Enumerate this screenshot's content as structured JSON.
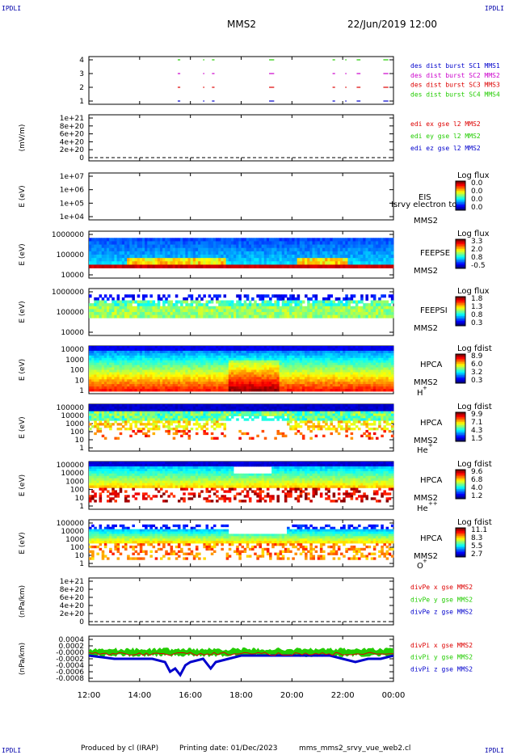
{
  "header": {
    "corner_label": "IPDLI",
    "mission": "MMS2",
    "date_time": "22/Jun/2019 12:00"
  },
  "footer": {
    "produced_by": "Produced by cl (IRAP)",
    "printing_date": "Printing date: 01/Dec/2023",
    "file_name": "mms_mms2_srvy_vue_web2.cl"
  },
  "colors": {
    "red": "#dd0000",
    "green": "#22cc00",
    "blue": "#0000cc",
    "magenta": "#cc00cc"
  },
  "chart_data": [
    {
      "type": "scatter",
      "name": "burst-availability",
      "yticks": [
        "4",
        "3",
        "2",
        "1"
      ],
      "legend": [
        {
          "label": "des dist burst SC1 MMS1",
          "color": "#0000cc"
        },
        {
          "label": "des dist burst SC2 MMS2",
          "color": "#cc00cc"
        },
        {
          "label": "des dist burst SC3 MMS3",
          "color": "#dd0000"
        },
        {
          "label": "des dist burst SC4 MMS4",
          "color": "#22cc00"
        }
      ],
      "segments_hours": [
        [
          15.5,
          15.6
        ],
        [
          16.5,
          16.55
        ],
        [
          16.85,
          16.95
        ],
        [
          19.1,
          19.3
        ],
        [
          21.6,
          21.7
        ],
        [
          22.1,
          22.15
        ],
        [
          22.55,
          22.7
        ],
        [
          23.6,
          23.8
        ]
      ]
    },
    {
      "type": "line",
      "name": "edi-e-field",
      "ylabel": "(mV/m)",
      "yticks": [
        "1e+21",
        "8e+20",
        "6e+20",
        "4e+20",
        "2e+20",
        "0"
      ],
      "legend": [
        {
          "label": "edi ex gse l2 MMS2",
          "color": "#dd0000"
        },
        {
          "label": "edi ey gse l2 MMS2",
          "color": "#22cc00"
        },
        {
          "label": "edi ez gse l2 MMS2",
          "color": "#0000cc"
        }
      ]
    },
    {
      "type": "heatmap",
      "name": "eis",
      "ylabel": "E (eV)",
      "yticks": [
        "1e+07",
        "1e+06",
        "1e+05",
        "1e+04"
      ],
      "instrument": [
        "EIS",
        "MMS2"
      ],
      "overlay_text": "Isrvy electron to",
      "colorbar_title": "Log flux",
      "colorbar_values": [
        "0.0",
        "0.0",
        "0.0",
        "0.0"
      ]
    },
    {
      "type": "heatmap",
      "name": "feeps-electron",
      "ylabel": "E (eV)",
      "yticks": [
        "1000000",
        "100000",
        "10000"
      ],
      "instrument": [
        "FEEPSE",
        "MMS2"
      ],
      "colorbar_title": "Log flux",
      "colorbar_values": [
        "3.3",
        "2.0",
        "0.8",
        "-0.5"
      ]
    },
    {
      "type": "heatmap",
      "name": "feeps-ion",
      "ylabel": "E (eV)",
      "yticks": [
        "1000000",
        "100000",
        "10000"
      ],
      "instrument": [
        "FEEPSI",
        "MMS2"
      ],
      "colorbar_title": "Log flux",
      "colorbar_values": [
        "1.8",
        "1.3",
        "0.8",
        "0.3"
      ]
    },
    {
      "type": "heatmap",
      "name": "hpca-h",
      "ylabel": "E (eV)",
      "yticks": [
        "10000",
        "1000",
        "100",
        "10",
        "1"
      ],
      "instrument": [
        "HPCA",
        "MMS2"
      ],
      "species": "H",
      "species_sup": "+",
      "colorbar_title": "Log fdist",
      "colorbar_values": [
        "8.9",
        "6.0",
        "3.2",
        "0.3"
      ]
    },
    {
      "type": "heatmap",
      "name": "hpca-he",
      "ylabel": "E (eV)",
      "yticks": [
        "100000",
        "10000",
        "1000",
        "100",
        "10",
        "1"
      ],
      "instrument": [
        "HPCA",
        "MMS2"
      ],
      "species": "He",
      "species_sup": "+",
      "colorbar_title": "Log fdist",
      "colorbar_values": [
        "9.9",
        "7.1",
        "4.3",
        "1.5"
      ]
    },
    {
      "type": "heatmap",
      "name": "hpca-he2",
      "ylabel": "E (eV)",
      "yticks": [
        "100000",
        "10000",
        "1000",
        "100",
        "10",
        "1"
      ],
      "instrument": [
        "HPCA",
        "MMS2"
      ],
      "species": "He",
      "species_sup": "++",
      "colorbar_title": "Log fdist",
      "colorbar_values": [
        "9.6",
        "6.8",
        "4.0",
        "1.2"
      ]
    },
    {
      "type": "heatmap",
      "name": "hpca-o",
      "ylabel": "E (eV)",
      "yticks": [
        "100000",
        "10000",
        "1000",
        "100",
        "10",
        "1"
      ],
      "instrument": [
        "HPCA",
        "MMS2"
      ],
      "species": "O",
      "species_sup": "+",
      "colorbar_title": "Log fdist",
      "colorbar_values": [
        "11.1",
        "8.3",
        "5.5",
        "2.7"
      ]
    },
    {
      "type": "line",
      "name": "divpe",
      "ylabel": "(nPa/km)",
      "yticks": [
        "1e+21",
        "8e+20",
        "6e+20",
        "4e+20",
        "2e+20",
        "0"
      ],
      "legend": [
        {
          "label": "divPe x gse MMS2",
          "color": "#dd0000"
        },
        {
          "label": "divPe y gse MMS2",
          "color": "#22cc00"
        },
        {
          "label": "divPe z gse MMS2",
          "color": "#0000cc"
        }
      ]
    },
    {
      "type": "line",
      "name": "divpi",
      "ylabel": "(nPa/km)",
      "yticks": [
        "0.0004",
        "0.0002",
        "-0.0000",
        "-0.0002",
        "-0.0004",
        "-0.0006",
        "-0.0008"
      ],
      "ylim": [
        -0.0009,
        0.0005
      ],
      "legend": [
        {
          "label": "divPi x gse MMS2",
          "color": "#dd0000"
        },
        {
          "label": "divPi y gse MMS2",
          "color": "#22cc00"
        },
        {
          "label": "divPi z gse MMS2",
          "color": "#0000cc"
        }
      ],
      "x_hours": [
        12,
        13,
        14,
        14.5,
        15,
        15.2,
        15.4,
        15.6,
        15.8,
        16,
        16.5,
        16.8,
        17,
        17.5,
        18,
        19,
        20,
        21,
        21.5,
        22,
        22.5,
        23,
        23.5,
        24
      ],
      "z_values": [
        -0.0001,
        -0.0002,
        -0.0002,
        -0.0002,
        -0.0003,
        -0.0006,
        -0.0005,
        -0.0007,
        -0.0004,
        -0.0003,
        -0.0002,
        -0.0005,
        -0.0003,
        -0.0002,
        -0.0001,
        -0.0001,
        -0.0001,
        -0.0001,
        -0.0001,
        -0.0002,
        -0.0003,
        -0.0002,
        -0.0002,
        -0.0001
      ]
    }
  ],
  "x_axis": {
    "labels": [
      "12:00",
      "14:00",
      "16:00",
      "18:00",
      "20:00",
      "22:00",
      "00:00"
    ],
    "hours": [
      12,
      14,
      16,
      18,
      20,
      22,
      24
    ],
    "range_hours": [
      12,
      24
    ]
  }
}
